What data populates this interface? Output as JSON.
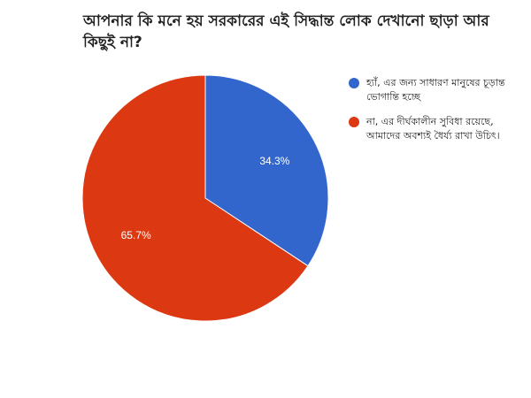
{
  "chart_data": {
    "type": "pie",
    "title": "আপনার কি মনে হয় সরকারের এই সিদ্ধান্ত লোক দেখানো ছাড়া আর কিছুই না?",
    "categories": [
      "হ্যাঁ, এর জন্য সাধারণ মানুষের চূড়ান্ত ভোগান্তি হচ্ছে",
      "না, এর দীর্ঘকালীন সুবিধা রয়েছে, আমাদের অবশ্যই ধৈর্য্য রাখা উচিৎ।"
    ],
    "values": [
      34.3,
      65.7
    ],
    "data_labels": [
      "34.3%",
      "65.7%"
    ],
    "colors": [
      "#3366cc",
      "#dc3912"
    ],
    "legend_position": "right",
    "start_angle_deg": 0,
    "direction": "clockwise"
  }
}
